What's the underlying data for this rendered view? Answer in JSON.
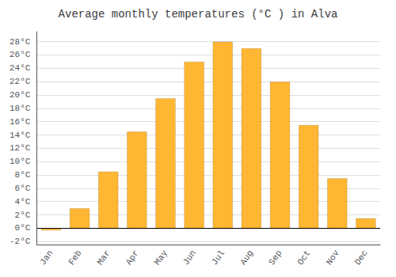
{
  "chart_data": {
    "type": "bar",
    "title": "Average monthly temperatures (°C ) in Alva",
    "categories": [
      "Jan",
      "Feb",
      "Mar",
      "Apr",
      "May",
      "Jun",
      "Jul",
      "Aug",
      "Sep",
      "Oct",
      "Nov",
      "Dec"
    ],
    "values": [
      -0.3,
      3.0,
      8.5,
      14.5,
      19.5,
      25.0,
      28.0,
      27.0,
      22.0,
      15.5,
      7.5,
      1.5
    ],
    "color": "#FFB733",
    "ylim": [
      -2.5,
      29.5
    ],
    "yticks": [
      {
        "value": -2,
        "label": "-2°C"
      },
      {
        "value": 0,
        "label": "0°C"
      },
      {
        "value": 2,
        "label": "2°C"
      },
      {
        "value": 4,
        "label": "4°C"
      },
      {
        "value": 6,
        "label": "6°C"
      },
      {
        "value": 8,
        "label": "8°C"
      },
      {
        "value": 10,
        "label": "10°C"
      },
      {
        "value": 12,
        "label": "12°C"
      },
      {
        "value": 14,
        "label": "14°C"
      },
      {
        "value": 16,
        "label": "16°C"
      },
      {
        "value": 18,
        "label": "18°C"
      },
      {
        "value": 20,
        "label": "20°C"
      },
      {
        "value": 22,
        "label": "22°C"
      },
      {
        "value": 24,
        "label": "24°C"
      },
      {
        "value": 26,
        "label": "26°C"
      },
      {
        "value": 28,
        "label": "28°C"
      }
    ],
    "grid": true
  }
}
